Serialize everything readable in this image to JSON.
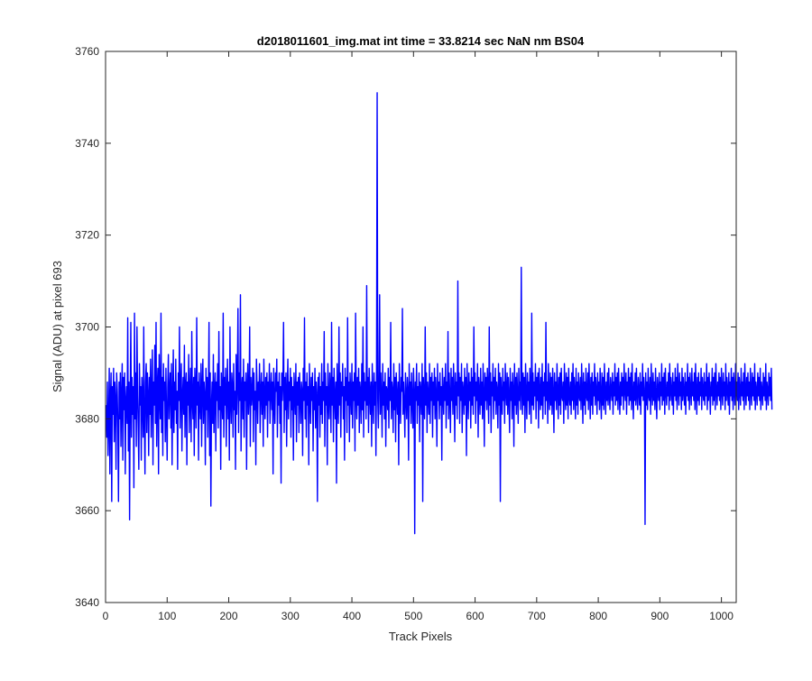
{
  "chart_data": {
    "type": "line",
    "title": "d2018011601_img.mat int time = 33.8214 sec  NaN nm BS04",
    "xlabel": "Track Pixels",
    "ylabel": "Signal (ADU) at pixel 693",
    "xlim": [
      0,
      1024
    ],
    "ylim": [
      3640,
      3760
    ],
    "grid": false,
    "line_color": "#0000ff",
    "x_ticks": [
      0,
      100,
      200,
      300,
      400,
      500,
      600,
      700,
      800,
      900,
      1000
    ],
    "y_ticks": [
      3640,
      3660,
      3680,
      3700,
      3720,
      3740,
      3760
    ],
    "series": [
      {
        "x_start": 1,
        "x_step": 1,
        "values": [
          3683,
          3676,
          3688,
          3672,
          3679,
          3691,
          3668,
          3685,
          3690,
          3662,
          3687,
          3681,
          3691,
          3675,
          3688,
          3684,
          3669,
          3690,
          3686,
          3678,
          3662,
          3688,
          3680,
          3690,
          3674,
          3685,
          3692,
          3671,
          3689,
          3682,
          3690,
          3668,
          3684,
          3687,
          3679,
          3702,
          3673,
          3688,
          3658,
          3684,
          3701,
          3676,
          3689,
          3681,
          3687,
          3665,
          3703,
          3680,
          3690,
          3674,
          3700,
          3685,
          3678,
          3669,
          3692,
          3683,
          3687,
          3671,
          3689,
          3684,
          3676,
          3700,
          3680,
          3668,
          3688,
          3692,
          3677,
          3690,
          3685,
          3672,
          3689,
          3681,
          3693,
          3676,
          3686,
          3695,
          3670,
          3688,
          3683,
          3696,
          3679,
          3701,
          3674,
          3687,
          3691,
          3668,
          3694,
          3685,
          3680,
          3703,
          3677,
          3689,
          3672,
          3692,
          3684,
          3688,
          3675,
          3691,
          3681,
          3671,
          3687,
          3694,
          3680,
          3686,
          3690,
          3678,
          3692,
          3670,
          3684,
          3695,
          3677,
          3688,
          3682,
          3693,
          3679,
          3686,
          3669,
          3690,
          3684,
          3700,
          3678,
          3687,
          3692,
          3673,
          3685,
          3689,
          3681,
          3696,
          3676,
          3687,
          3690,
          3670,
          3688,
          3683,
          3694,
          3677,
          3686,
          3691,
          3675,
          3699,
          3684,
          3680,
          3689,
          3672,
          3691,
          3686,
          3678,
          3702,
          3683,
          3688,
          3671,
          3690,
          3684,
          3680,
          3692,
          3674,
          3687,
          3693,
          3679,
          3688,
          3685,
          3670,
          3691,
          3682,
          3689,
          3676,
          3686,
          3701,
          3672,
          3690,
          3661,
          3683,
          3688,
          3679,
          3694,
          3677,
          3686,
          3690,
          3673,
          3688,
          3684,
          3692,
          3678,
          3699,
          3682,
          3687,
          3669,
          3690,
          3685,
          3680,
          3703,
          3676,
          3689,
          3683,
          3691,
          3674,
          3686,
          3693,
          3680,
          3688,
          3671,
          3700,
          3684,
          3679,
          3690,
          3687,
          3676,
          3692,
          3682,
          3686,
          3669,
          3694,
          3681,
          3688,
          3704,
          3677,
          3690,
          3684,
          3707,
          3673,
          3686,
          3689,
          3680,
          3693,
          3676,
          3688,
          3684,
          3690,
          3669,
          3687,
          3692,
          3681,
          3685,
          3700,
          3674,
          3689,
          3683,
          3686,
          3691,
          3675,
          3690,
          3682,
          3686,
          3670,
          3693,
          3687,
          3679,
          3688,
          3684,
          3692,
          3677,
          3686,
          3690,
          3681,
          3688,
          3674,
          3693,
          3685,
          3680,
          3689,
          3683,
          3690,
          3676,
          3688,
          3684,
          3692,
          3679,
          3686,
          3690,
          3682,
          3688,
          3668,
          3691,
          3684,
          3679,
          3690,
          3686,
          3693,
          3676,
          3688,
          3683,
          3690,
          3679,
          3687,
          3666,
          3690,
          3684,
          3688,
          3701,
          3677,
          3689,
          3682,
          3690,
          3674,
          3686,
          3693,
          3680,
          3688,
          3684,
          3691,
          3676,
          3689,
          3682,
          3687,
          3671,
          3690,
          3686,
          3681,
          3692,
          3675,
          3688,
          3683,
          3689,
          3677,
          3690,
          3685,
          3679,
          3688,
          3686,
          3672,
          3691,
          3684,
          3702,
          3680,
          3688,
          3676,
          3690,
          3683,
          3687,
          3670,
          3692,
          3685,
          3679,
          3689,
          3684,
          3690,
          3673,
          3687,
          3682,
          3691,
          3678,
          3688,
          3685,
          3662,
          3689,
          3683,
          3690,
          3676,
          3687,
          3681,
          3692,
          3679,
          3688,
          3684,
          3699,
          3674,
          3690,
          3683,
          3687,
          3670,
          3692,
          3684,
          3680,
          3690,
          3686,
          3677,
          3701,
          3683,
          3689,
          3675,
          3691,
          3685,
          3680,
          3688,
          3666,
          3692,
          3684,
          3679,
          3700,
          3683,
          3690,
          3676,
          3688,
          3685,
          3692,
          3680,
          3687,
          3671,
          3691,
          3684,
          3689,
          3677,
          3702,
          3683,
          3688,
          3675,
          3690,
          3686,
          3681,
          3692,
          3678,
          3688,
          3684,
          3690,
          3673,
          3703,
          3685,
          3680,
          3689,
          3683,
          3691,
          3677,
          3688,
          3686,
          3679,
          3692,
          3682,
          3700,
          3676,
          3690,
          3684,
          3688,
          3680,
          3709,
          3683,
          3689,
          3677,
          3691,
          3686,
          3681,
          3688,
          3674,
          3692,
          3685,
          3679,
          3690,
          3683,
          3688,
          3672,
          3691,
          3751,
          3684,
          3678,
          3689,
          3707,
          3681,
          3690,
          3685,
          3676,
          3692,
          3683,
          3688,
          3680,
          3690,
          3674,
          3687,
          3686,
          3682,
          3691,
          3678,
          3689,
          3684,
          3701,
          3680,
          3688,
          3686,
          3677,
          3692,
          3682,
          3689,
          3675,
          3690,
          3685,
          3681,
          3688,
          3670,
          3692,
          3684,
          3679,
          3689,
          3686,
          3704,
          3681,
          3688,
          3683,
          3676,
          3690,
          3685,
          3680,
          3689,
          3686,
          3671,
          3692,
          3683,
          3688,
          3679,
          3690,
          3684,
          3678,
          3691,
          3686,
          3655,
          3688,
          3684,
          3692,
          3679,
          3687,
          3683,
          3690,
          3675,
          3688,
          3686,
          3681,
          3692,
          3662,
          3689,
          3684,
          3680,
          3700,
          3683,
          3690,
          3677,
          3688,
          3685,
          3681,
          3692,
          3679,
          3689,
          3684,
          3690,
          3676,
          3688,
          3683,
          3691,
          3680,
          3689,
          3685,
          3674,
          3692,
          3684,
          3688,
          3680,
          3690,
          3683,
          3687,
          3671,
          3691,
          3686,
          3681,
          3689,
          3684,
          3692,
          3678,
          3688,
          3683,
          3699,
          3680,
          3690,
          3685,
          3677,
          3691,
          3684,
          3689,
          3681,
          3692,
          3686,
          3675,
          3690,
          3683,
          3688,
          3680,
          3710,
          3685,
          3690,
          3679,
          3689,
          3684,
          3692,
          3677,
          3688,
          3686,
          3681,
          3691,
          3683,
          3689,
          3672,
          3692,
          3685,
          3680,
          3690,
          3684,
          3688,
          3678,
          3691,
          3683,
          3689,
          3681,
          3700,
          3685,
          3690,
          3679,
          3688,
          3684,
          3692,
          3676,
          3689,
          3686,
          3681,
          3691,
          3683,
          3688,
          3680,
          3692,
          3685,
          3674,
          3690,
          3684,
          3689,
          3682,
          3691,
          3686,
          3679,
          3700,
          3683,
          3690,
          3677,
          3688,
          3685,
          3692,
          3680,
          3689,
          3684,
          3691,
          3681,
          3688,
          3686,
          3678,
          3692,
          3683,
          3690,
          3662,
          3689,
          3685,
          3681,
          3691,
          3684,
          3688,
          3679,
          3692,
          3686,
          3683,
          3690,
          3681,
          3689,
          3685,
          3677,
          3691,
          3684,
          3688,
          3680,
          3690,
          3686,
          3674,
          3692,
          3683,
          3689,
          3681,
          3690,
          3685,
          3679,
          3691,
          3684,
          3688,
          3682,
          3713,
          3686,
          3681,
          3690,
          3683,
          3689,
          3677,
          3692,
          3685,
          3680,
          3690,
          3684,
          3688,
          3681,
          3691,
          3686,
          3679,
          3703,
          3683,
          3690,
          3682,
          3688,
          3685,
          3692,
          3680,
          3689,
          3684,
          3690,
          3678,
          3691,
          3686,
          3682,
          3689,
          3683,
          3692,
          3680,
          3688,
          3685,
          3690,
          3681,
          3701,
          3684,
          3688,
          3679,
          3692,
          3686,
          3682,
          3690,
          3683,
          3689,
          3681,
          3691,
          3685,
          3677,
          3690,
          3684,
          3688,
          3682,
          3692,
          3686,
          3680,
          3689,
          3683,
          3690,
          3681,
          3691,
          3685,
          3684,
          3688,
          3679,
          3692,
          3686,
          3682,
          3690,
          3683,
          3689,
          3680,
          3691,
          3685,
          3683,
          3688,
          3681,
          3690,
          3684,
          3692,
          3682,
          3689,
          3686,
          3680,
          3691,
          3683,
          3688,
          3681,
          3690,
          3685,
          3684,
          3689,
          3682,
          3692,
          3686,
          3679,
          3690,
          3683,
          3688,
          3681,
          3691,
          3685,
          3684,
          3690,
          3682,
          3692,
          3686,
          3680,
          3689,
          3683,
          3690,
          3681,
          3688,
          3685,
          3692,
          3683,
          3689,
          3686,
          3681,
          3690,
          3684,
          3688,
          3682,
          3691,
          3685,
          3680,
          3690,
          3683,
          3689,
          3682,
          3692,
          3686,
          3681,
          3688,
          3684,
          3690,
          3683,
          3691,
          3685,
          3682,
          3689,
          3686,
          3684,
          3690,
          3681,
          3688,
          3685,
          3692,
          3683,
          3689,
          3684,
          3690,
          3682,
          3691,
          3686,
          3681,
          3688,
          3683,
          3690,
          3685,
          3689,
          3682,
          3692,
          3686,
          3684,
          3690,
          3681,
          3688,
          3685,
          3691,
          3683,
          3689,
          3684,
          3690,
          3682,
          3692,
          3686,
          3680,
          3688,
          3684,
          3690,
          3683,
          3691,
          3685,
          3682,
          3689,
          3686,
          3683,
          3690,
          3681,
          3688,
          3685,
          3692,
          3684,
          3689,
          3686,
          3657,
          3690,
          3683,
          3688,
          3682,
          3691,
          3685,
          3684,
          3689,
          3681,
          3692,
          3686,
          3683,
          3690,
          3684,
          3688,
          3682,
          3691,
          3685,
          3680,
          3689,
          3686,
          3684,
          3690,
          3682,
          3688,
          3685,
          3692,
          3683,
          3689,
          3684,
          3690,
          3681,
          3691,
          3686,
          3683,
          3688,
          3685,
          3690,
          3682,
          3692,
          3684,
          3689,
          3686,
          3683,
          3690,
          3681,
          3688,
          3685,
          3691,
          3684,
          3689,
          3682,
          3692,
          3686,
          3683,
          3690,
          3685,
          3688,
          3682,
          3691,
          3684,
          3689,
          3686,
          3683,
          3690,
          3681,
          3688,
          3685,
          3692,
          3684,
          3689,
          3682,
          3690,
          3686,
          3683,
          3691,
          3685,
          3688,
          3684,
          3690,
          3682,
          3692,
          3686,
          3681,
          3689,
          3684,
          3690,
          3683,
          3688,
          3685,
          3691,
          3682,
          3689,
          3686,
          3684,
          3690,
          3683,
          3688,
          3685,
          3692,
          3682,
          3689,
          3684,
          3690,
          3686,
          3681,
          3688,
          3685,
          3691,
          3683,
          3689,
          3684,
          3690,
          3682,
          3692,
          3686,
          3683,
          3688,
          3685,
          3690,
          3684,
          3689,
          3682,
          3691,
          3686,
          3683,
          3690,
          3685,
          3688,
          3682,
          3692,
          3684,
          3689,
          3686,
          3683,
          3690,
          3681,
          3688,
          3685,
          3691,
          3684,
          3689,
          3682,
          3690,
          3686,
          3683,
          3692,
          3685,
          3688,
          3684,
          3690,
          3682,
          3689,
          3686,
          3683,
          3691,
          3685,
          3688,
          3684,
          3690,
          3682,
          3692,
          3686,
          3683,
          3689,
          3685,
          3690,
          3684,
          3688,
          3682,
          3691,
          3686,
          3683,
          3690,
          3685,
          3689,
          3684,
          3692,
          3682,
          3688,
          3686,
          3683,
          3690,
          3685,
          3689,
          3684,
          3691,
          3682,
          3688,
          3686,
          3683,
          3690,
          3685,
          3689,
          3684,
          3692,
          3682,
          3688,
          3686,
          3683,
          3690,
          3685,
          3689,
          3684,
          3691,
          3682
        ]
      }
    ]
  }
}
